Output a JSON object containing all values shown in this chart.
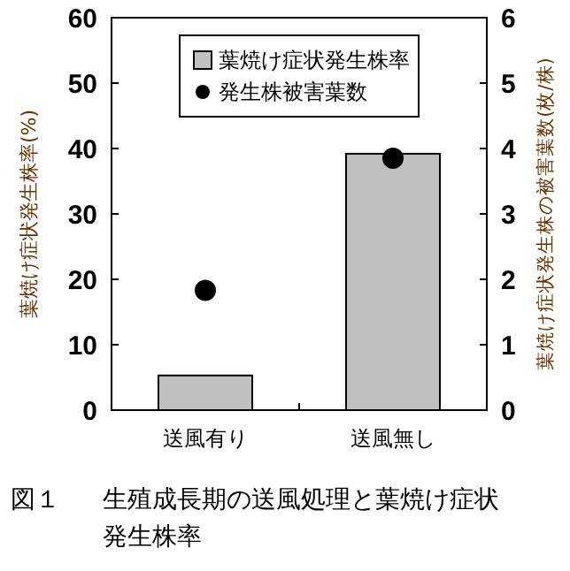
{
  "chart_data": {
    "type": "bar",
    "title": "図１　生殖成長期の送風処理と葉焼け症状発生株率",
    "categories": [
      "送風有り",
      "送風無し"
    ],
    "series": [
      {
        "name": "葉焼け症状発生株率",
        "color": "#c0c0c0",
        "values": [
          5.3,
          39.2
        ]
      },
      {
        "name": "発生株被害葉数",
        "type": "scatter",
        "axis": "y2",
        "color": "#000000",
        "marker": "circle",
        "values": [
          1.83,
          3.85
        ]
      }
    ],
    "ylabel": "葉焼け症状発生株率(%)",
    "y2label": "葉焼け症状発生株の被害葉数(枚/株)",
    "ylim": [
      0,
      60
    ],
    "yticks": [
      0,
      10,
      20,
      30,
      40,
      50,
      60
    ],
    "y2lim": [
      0,
      6
    ],
    "y2ticks": [
      0,
      1,
      2,
      3,
      4,
      5,
      6
    ],
    "legend": "top",
    "grid": false
  }
}
